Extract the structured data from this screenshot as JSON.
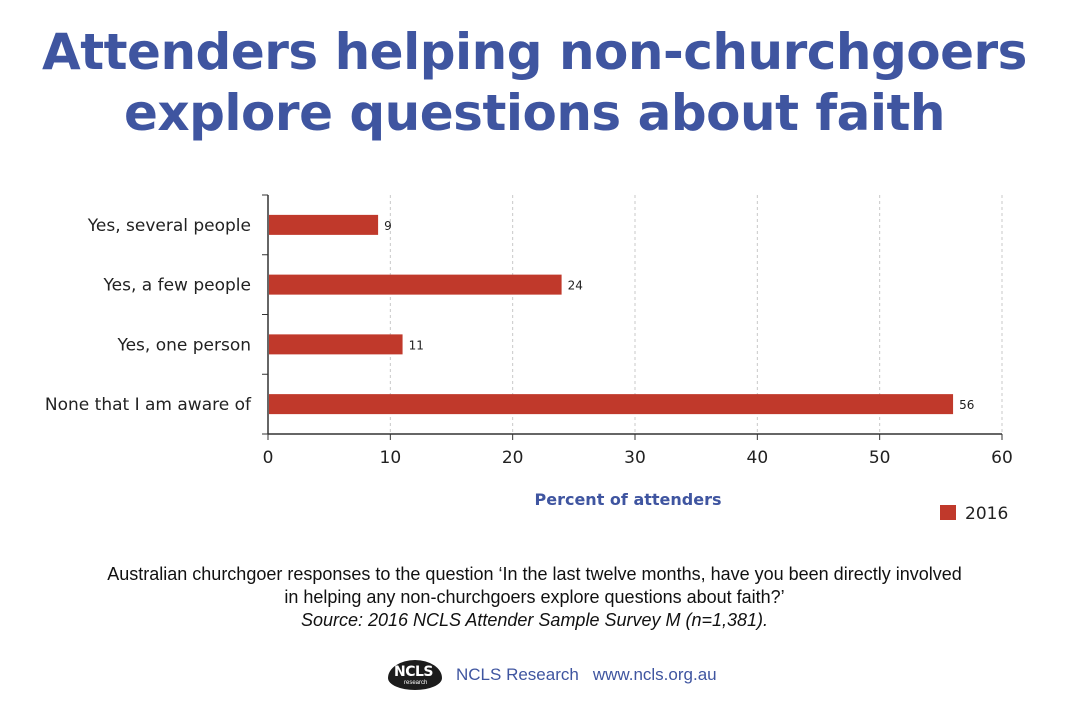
{
  "title_lines": [
    "Attenders helping non-churchgoers",
    "explore questions about faith"
  ],
  "chart_data": {
    "type": "bar",
    "orientation": "horizontal",
    "categories": [
      "Yes, several people",
      "Yes, a few people",
      "Yes, one person",
      "None that I am aware of"
    ],
    "series": [
      {
        "name": "2016",
        "values": [
          9,
          24,
          11,
          56
        ],
        "color": "#c0392b"
      }
    ],
    "xlabel": "Percent of attenders",
    "ylabel": "",
    "xlim": [
      0,
      60
    ],
    "ticks": [
      0,
      10,
      20,
      30,
      40,
      50,
      60
    ],
    "grid": true,
    "legend": "bottom-right",
    "data_labels": true
  },
  "caption": {
    "line1": "Australian churchgoer responses to the question ‘In the last twelve months, have you been directly involved",
    "line2": "in helping any non-churchgoers explore questions about faith?’",
    "source": "Source: 2016 NCLS Attender Sample Survey M (n=1,381)."
  },
  "footer": {
    "logo_text": "NCLS",
    "logo_subtext": "research",
    "org": "NCLS Research",
    "url": "www.ncls.org.au"
  }
}
